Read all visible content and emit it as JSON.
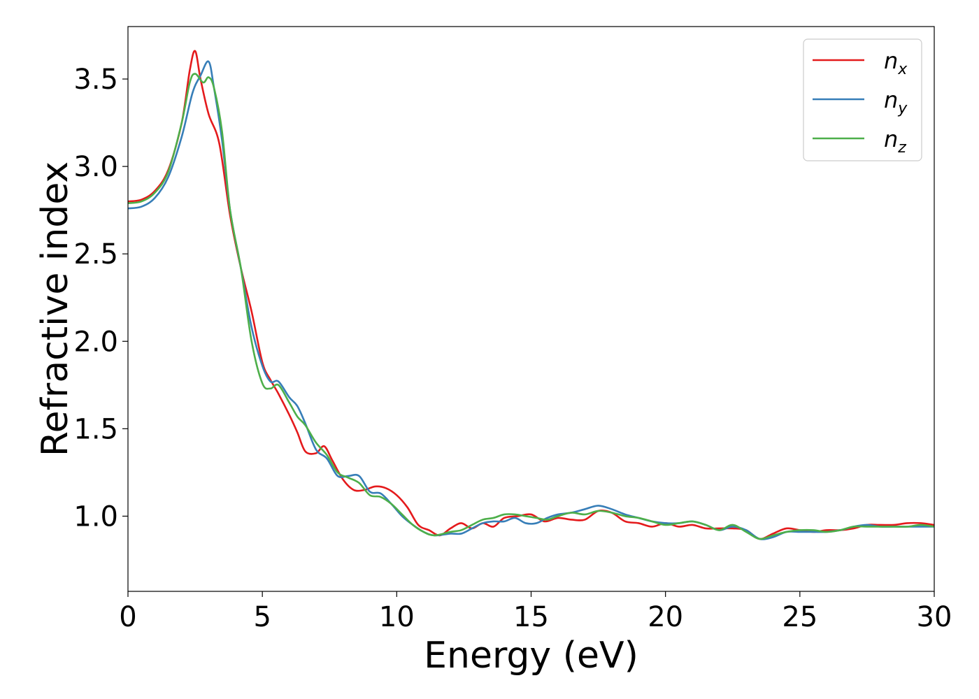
{
  "chart_data": {
    "type": "line",
    "xlabel": "Energy (eV)",
    "ylabel": "Refractive index",
    "xlim": [
      0,
      30
    ],
    "ylim": [
      0.57,
      3.8
    ],
    "xticks": [
      0,
      5,
      10,
      15,
      20,
      25,
      30
    ],
    "yticks": [
      1.0,
      1.5,
      2.0,
      2.5,
      3.0,
      3.5
    ],
    "xtick_labels": [
      "0",
      "5",
      "10",
      "15",
      "20",
      "25",
      "30"
    ],
    "ytick_labels": [
      "1.0",
      "1.5",
      "2.0",
      "2.5",
      "3.0",
      "3.5"
    ],
    "grid": false,
    "legend_position": "top-right",
    "series": [
      {
        "name": "n_x",
        "label_base": "n",
        "label_sub": "x",
        "color": "#e41a1c",
        "points": [
          [
            0,
            2.8
          ],
          [
            0.5,
            2.81
          ],
          [
            1.0,
            2.86
          ],
          [
            1.5,
            2.98
          ],
          [
            2.0,
            3.25
          ],
          [
            2.3,
            3.55
          ],
          [
            2.5,
            3.66
          ],
          [
            2.7,
            3.5
          ],
          [
            3.0,
            3.3
          ],
          [
            3.4,
            3.13
          ],
          [
            3.8,
            2.72
          ],
          [
            4.2,
            2.42
          ],
          [
            4.6,
            2.17
          ],
          [
            5.0,
            1.88
          ],
          [
            5.3,
            1.78
          ],
          [
            5.6,
            1.7
          ],
          [
            6.0,
            1.58
          ],
          [
            6.3,
            1.48
          ],
          [
            6.6,
            1.37
          ],
          [
            7.0,
            1.36
          ],
          [
            7.3,
            1.4
          ],
          [
            7.6,
            1.32
          ],
          [
            8.0,
            1.21
          ],
          [
            8.4,
            1.15
          ],
          [
            8.8,
            1.15
          ],
          [
            9.2,
            1.17
          ],
          [
            9.6,
            1.16
          ],
          [
            10.0,
            1.12
          ],
          [
            10.4,
            1.05
          ],
          [
            10.8,
            0.95
          ],
          [
            11.2,
            0.92
          ],
          [
            11.6,
            0.89
          ],
          [
            12.0,
            0.93
          ],
          [
            12.4,
            0.96
          ],
          [
            12.8,
            0.93
          ],
          [
            13.2,
            0.96
          ],
          [
            13.6,
            0.94
          ],
          [
            14.0,
            0.99
          ],
          [
            14.5,
            1.0
          ],
          [
            15.0,
            1.01
          ],
          [
            15.5,
            0.97
          ],
          [
            16.0,
            0.99
          ],
          [
            16.5,
            0.98
          ],
          [
            17.0,
            0.98
          ],
          [
            17.5,
            1.03
          ],
          [
            18.0,
            1.02
          ],
          [
            18.5,
            0.97
          ],
          [
            19.0,
            0.96
          ],
          [
            19.5,
            0.94
          ],
          [
            20.0,
            0.96
          ],
          [
            20.5,
            0.94
          ],
          [
            21.0,
            0.95
          ],
          [
            21.5,
            0.93
          ],
          [
            22.0,
            0.93
          ],
          [
            22.5,
            0.93
          ],
          [
            23.0,
            0.92
          ],
          [
            23.5,
            0.87
          ],
          [
            24.0,
            0.9
          ],
          [
            24.5,
            0.93
          ],
          [
            25.0,
            0.92
          ],
          [
            25.5,
            0.91
          ],
          [
            26.0,
            0.92
          ],
          [
            26.5,
            0.92
          ],
          [
            27.0,
            0.93
          ],
          [
            27.5,
            0.95
          ],
          [
            28.0,
            0.95
          ],
          [
            28.5,
            0.95
          ],
          [
            29.0,
            0.96
          ],
          [
            29.5,
            0.96
          ],
          [
            30.0,
            0.95
          ]
        ]
      },
      {
        "name": "n_y",
        "label_base": "n",
        "label_sub": "y",
        "color": "#377eb8",
        "points": [
          [
            0,
            2.76
          ],
          [
            0.5,
            2.77
          ],
          [
            1.0,
            2.82
          ],
          [
            1.5,
            2.94
          ],
          [
            2.0,
            3.17
          ],
          [
            2.4,
            3.42
          ],
          [
            2.7,
            3.52
          ],
          [
            3.0,
            3.6
          ],
          [
            3.2,
            3.45
          ],
          [
            3.5,
            3.15
          ],
          [
            3.8,
            2.75
          ],
          [
            4.2,
            2.42
          ],
          [
            4.6,
            2.08
          ],
          [
            5.0,
            1.86
          ],
          [
            5.3,
            1.77
          ],
          [
            5.6,
            1.77
          ],
          [
            6.0,
            1.68
          ],
          [
            6.3,
            1.63
          ],
          [
            6.6,
            1.53
          ],
          [
            7.0,
            1.38
          ],
          [
            7.4,
            1.33
          ],
          [
            7.8,
            1.23
          ],
          [
            8.2,
            1.23
          ],
          [
            8.6,
            1.23
          ],
          [
            9.0,
            1.14
          ],
          [
            9.4,
            1.13
          ],
          [
            9.8,
            1.07
          ],
          [
            10.2,
            1.0
          ],
          [
            10.6,
            0.95
          ],
          [
            11.0,
            0.91
          ],
          [
            11.4,
            0.89
          ],
          [
            12.0,
            0.9
          ],
          [
            12.4,
            0.9
          ],
          [
            12.8,
            0.93
          ],
          [
            13.2,
            0.96
          ],
          [
            13.6,
            0.97
          ],
          [
            14.0,
            0.97
          ],
          [
            14.4,
            0.99
          ],
          [
            14.8,
            0.96
          ],
          [
            15.2,
            0.96
          ],
          [
            15.6,
            0.99
          ],
          [
            16.0,
            1.01
          ],
          [
            16.5,
            1.02
          ],
          [
            17.0,
            1.04
          ],
          [
            17.5,
            1.06
          ],
          [
            18.0,
            1.04
          ],
          [
            18.5,
            1.01
          ],
          [
            19.0,
            0.99
          ],
          [
            19.5,
            0.97
          ],
          [
            20.0,
            0.96
          ],
          [
            20.5,
            0.96
          ],
          [
            21.0,
            0.97
          ],
          [
            21.5,
            0.95
          ],
          [
            22.0,
            0.92
          ],
          [
            22.5,
            0.94
          ],
          [
            23.0,
            0.92
          ],
          [
            23.5,
            0.87
          ],
          [
            24.0,
            0.88
          ],
          [
            24.5,
            0.91
          ],
          [
            25.0,
            0.91
          ],
          [
            25.5,
            0.91
          ],
          [
            26.0,
            0.91
          ],
          [
            26.5,
            0.92
          ],
          [
            27.0,
            0.94
          ],
          [
            27.5,
            0.95
          ],
          [
            28.0,
            0.94
          ],
          [
            28.5,
            0.94
          ],
          [
            29.0,
            0.94
          ],
          [
            29.5,
            0.94
          ],
          [
            30.0,
            0.94
          ]
        ]
      },
      {
        "name": "n_z",
        "label_base": "n",
        "label_sub": "z",
        "color": "#4daf4a",
        "points": [
          [
            0,
            2.79
          ],
          [
            0.5,
            2.8
          ],
          [
            1.0,
            2.85
          ],
          [
            1.5,
            2.97
          ],
          [
            2.0,
            3.25
          ],
          [
            2.3,
            3.48
          ],
          [
            2.5,
            3.53
          ],
          [
            2.8,
            3.48
          ],
          [
            3.0,
            3.51
          ],
          [
            3.2,
            3.45
          ],
          [
            3.5,
            3.2
          ],
          [
            3.8,
            2.75
          ],
          [
            4.2,
            2.42
          ],
          [
            4.6,
            2.0
          ],
          [
            5.0,
            1.76
          ],
          [
            5.3,
            1.73
          ],
          [
            5.6,
            1.75
          ],
          [
            6.0,
            1.65
          ],
          [
            6.3,
            1.57
          ],
          [
            6.6,
            1.52
          ],
          [
            7.0,
            1.42
          ],
          [
            7.4,
            1.35
          ],
          [
            7.8,
            1.25
          ],
          [
            8.2,
            1.22
          ],
          [
            8.6,
            1.19
          ],
          [
            9.0,
            1.12
          ],
          [
            9.4,
            1.11
          ],
          [
            9.8,
            1.07
          ],
          [
            10.2,
            1.01
          ],
          [
            10.6,
            0.95
          ],
          [
            11.0,
            0.91
          ],
          [
            11.4,
            0.89
          ],
          [
            12.0,
            0.91
          ],
          [
            12.4,
            0.92
          ],
          [
            12.8,
            0.95
          ],
          [
            13.2,
            0.98
          ],
          [
            13.6,
            0.99
          ],
          [
            14.0,
            1.01
          ],
          [
            14.4,
            1.01
          ],
          [
            14.8,
            1.0
          ],
          [
            15.2,
            0.99
          ],
          [
            15.6,
            0.98
          ],
          [
            16.0,
            1.0
          ],
          [
            16.5,
            1.02
          ],
          [
            17.0,
            1.01
          ],
          [
            17.5,
            1.03
          ],
          [
            18.0,
            1.02
          ],
          [
            18.5,
            1.0
          ],
          [
            19.0,
            0.99
          ],
          [
            19.5,
            0.97
          ],
          [
            20.0,
            0.95
          ],
          [
            20.5,
            0.96
          ],
          [
            21.0,
            0.97
          ],
          [
            21.5,
            0.95
          ],
          [
            22.0,
            0.92
          ],
          [
            22.5,
            0.95
          ],
          [
            23.0,
            0.91
          ],
          [
            23.5,
            0.87
          ],
          [
            24.0,
            0.89
          ],
          [
            24.5,
            0.91
          ],
          [
            25.0,
            0.92
          ],
          [
            25.5,
            0.92
          ],
          [
            26.0,
            0.91
          ],
          [
            26.5,
            0.92
          ],
          [
            27.0,
            0.94
          ],
          [
            27.5,
            0.94
          ],
          [
            28.0,
            0.94
          ],
          [
            28.5,
            0.94
          ],
          [
            29.0,
            0.94
          ],
          [
            29.5,
            0.95
          ],
          [
            30.0,
            0.94
          ]
        ]
      }
    ]
  }
}
